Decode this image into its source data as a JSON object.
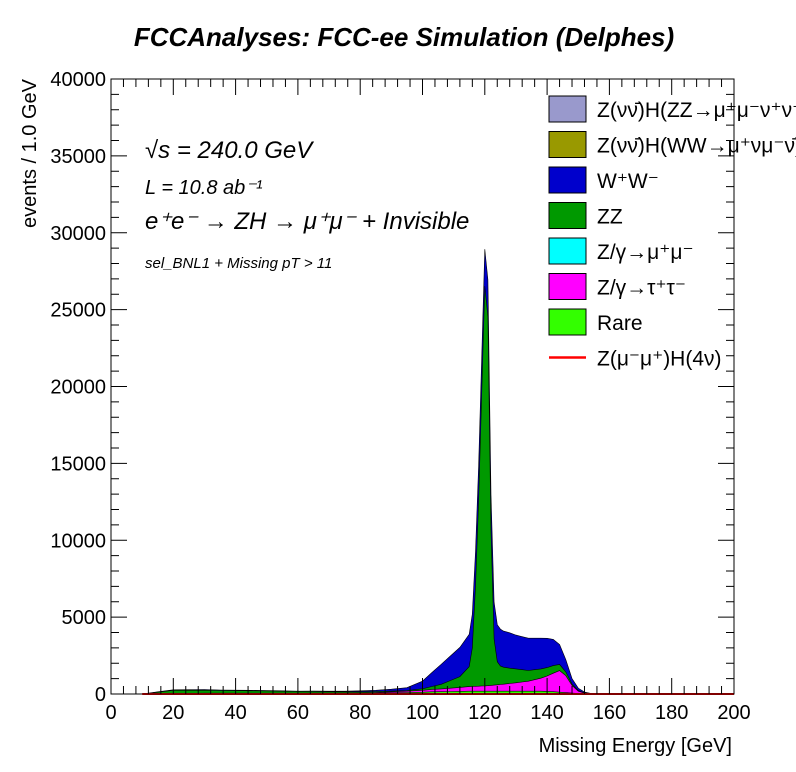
{
  "chart_data": {
    "type": "area",
    "title": "FCCAnalyses: FCC-ee Simulation (Delphes)",
    "xlabel": "Missing Energy [GeV]",
    "ylabel": "events / 1.0 GeV",
    "xlim": [
      0,
      200
    ],
    "ylim": [
      0,
      40000
    ],
    "xticks": [
      "0",
      "20",
      "40",
      "60",
      "80",
      "100",
      "120",
      "140",
      "160",
      "180",
      "200"
    ],
    "yticks": [
      "0",
      "5000",
      "10000",
      "15000",
      "20000",
      "25000",
      "30000",
      "35000",
      "40000"
    ],
    "stacked": true,
    "grid": false,
    "legend_position": "top-right",
    "annotations": {
      "sqrt_s": "√s = 240.0 GeV",
      "lumi": "L = 10.8 ab⁻¹",
      "process": "e⁺e⁻ → ZH → μ⁺μ⁻ + Invisible",
      "selection": "sel_BNL1 + Missing pT > 11"
    },
    "x": [
      10,
      15,
      20,
      25,
      30,
      35,
      40,
      45,
      50,
      55,
      60,
      65,
      70,
      75,
      80,
      85,
      90,
      95,
      100,
      103,
      106,
      109,
      112,
      115,
      116,
      117,
      118,
      119,
      120,
      121,
      122,
      123,
      124,
      125,
      126,
      128,
      130,
      132,
      134,
      136,
      138,
      140,
      142,
      144,
      146,
      148,
      150,
      152,
      155,
      160,
      170,
      180,
      190,
      200
    ],
    "series": [
      {
        "name": "Z(νν̄)H(ZZ→μ⁺μ⁻ν⁺ν⁻)",
        "color": "#9999cc",
        "values": [
          0,
          0,
          0,
          0,
          0,
          0,
          0,
          0,
          0,
          0,
          0,
          0,
          0,
          0,
          0,
          0,
          0,
          0,
          0,
          0,
          0,
          0,
          0,
          0,
          0,
          0,
          0,
          0,
          0,
          0,
          0,
          0,
          0,
          0,
          0,
          0,
          0,
          0,
          0,
          0,
          0,
          0,
          0,
          0,
          0,
          0,
          0,
          0,
          0,
          0,
          0,
          0,
          0,
          0
        ]
      },
      {
        "name": "Z(νν̄)H(WW→μ⁺νμ⁻ν̄)",
        "color": "#999900",
        "values": [
          0,
          0,
          0,
          0,
          0,
          0,
          0,
          0,
          0,
          0,
          0,
          0,
          0,
          0,
          0,
          0,
          0,
          0,
          0,
          0,
          0,
          0,
          0,
          0,
          0,
          0,
          0,
          0,
          0,
          0,
          0,
          0,
          0,
          0,
          0,
          0,
          0,
          0,
          0,
          0,
          0,
          0,
          0,
          0,
          0,
          0,
          0,
          0,
          0,
          0,
          0,
          0,
          0,
          0
        ]
      },
      {
        "name": "W⁺W⁻",
        "color": "#0000cc",
        "values": [
          0,
          20,
          30,
          40,
          40,
          30,
          30,
          30,
          20,
          20,
          20,
          30,
          30,
          40,
          60,
          80,
          120,
          180,
          500,
          900,
          1300,
          1600,
          1900,
          2100,
          2200,
          2250,
          2300,
          2350,
          2400,
          2400,
          2400,
          2400,
          2400,
          2400,
          2350,
          2300,
          2200,
          2150,
          2100,
          2050,
          2000,
          1900,
          1700,
          1300,
          800,
          350,
          150,
          50,
          0,
          0,
          0,
          0,
          0,
          0
        ]
      },
      {
        "name": "ZZ",
        "color": "#009900",
        "values": [
          0,
          100,
          200,
          200,
          200,
          180,
          170,
          160,
          150,
          130,
          110,
          100,
          90,
          80,
          70,
          60,
          50,
          50,
          100,
          200,
          300,
          500,
          700,
          1300,
          2500,
          6500,
          12000,
          19000,
          26000,
          24000,
          10000,
          3000,
          1500,
          1200,
          1100,
          1000,
          900,
          800,
          700,
          650,
          600,
          550,
          500,
          400,
          250,
          100,
          50,
          20,
          0,
          0,
          0,
          0,
          0,
          0
        ]
      },
      {
        "name": "Z/γ→μ⁺μ⁻",
        "color": "#00ffff",
        "values": [
          0,
          0,
          0,
          0,
          0,
          0,
          0,
          0,
          0,
          0,
          0,
          0,
          0,
          0,
          0,
          0,
          0,
          0,
          0,
          0,
          0,
          0,
          0,
          0,
          0,
          0,
          0,
          0,
          0,
          0,
          0,
          0,
          0,
          0,
          0,
          0,
          0,
          0,
          0,
          0,
          0,
          0,
          0,
          0,
          0,
          0,
          0,
          0,
          0,
          0,
          0,
          0,
          0,
          0
        ]
      },
      {
        "name": "Z/γ→τ⁺τ⁻",
        "color": "#ff00ff",
        "values": [
          0,
          0,
          0,
          0,
          10,
          10,
          10,
          10,
          10,
          15,
          15,
          20,
          20,
          25,
          30,
          40,
          60,
          80,
          120,
          150,
          180,
          220,
          260,
          300,
          310,
          320,
          330,
          340,
          350,
          360,
          380,
          400,
          420,
          440,
          460,
          500,
          550,
          600,
          650,
          750,
          850,
          1000,
          1200,
          1400,
          1100,
          500,
          150,
          50,
          0,
          0,
          0,
          0,
          0,
          0
        ]
      },
      {
        "name": "Rare",
        "color": "#33ff00",
        "values": [
          0,
          20,
          40,
          40,
          40,
          40,
          40,
          40,
          40,
          40,
          40,
          40,
          40,
          40,
          50,
          60,
          80,
          100,
          120,
          140,
          150,
          160,
          170,
          180,
          180,
          180,
          180,
          180,
          180,
          180,
          180,
          180,
          180,
          180,
          180,
          180,
          180,
          180,
          180,
          180,
          180,
          170,
          150,
          120,
          90,
          60,
          30,
          10,
          0,
          0,
          0,
          0,
          0,
          0
        ]
      },
      {
        "name": "Z(μ⁻μ⁺)H(4ν)",
        "color": "#ff0000",
        "style": "line",
        "values": [
          0,
          0,
          0,
          0,
          0,
          0,
          0,
          0,
          0,
          0,
          0,
          0,
          0,
          0,
          0,
          0,
          0,
          0,
          0,
          0,
          0,
          0,
          0,
          0,
          0,
          0,
          0,
          0,
          0,
          0,
          0,
          0,
          0,
          0,
          0,
          0,
          0,
          0,
          0,
          0,
          0,
          0,
          0,
          0,
          0,
          0,
          0,
          0,
          0,
          0,
          0,
          0,
          0,
          0
        ]
      }
    ]
  }
}
